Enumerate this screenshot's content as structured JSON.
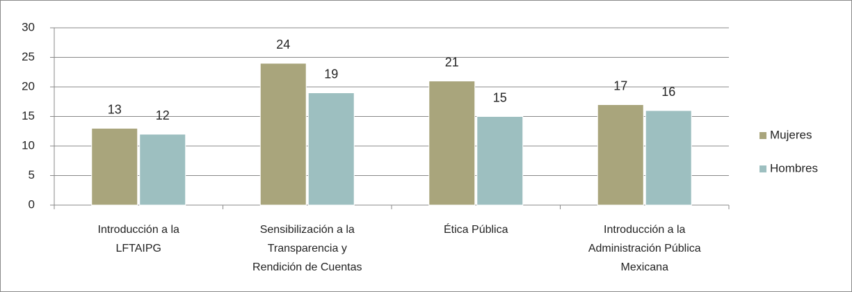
{
  "chart_data": {
    "type": "bar",
    "categories": [
      "Introducción a la LFTAIPG",
      "Sensibilización a la Transparencia y Rendición de Cuentas",
      "Ética Pública",
      "Introducción a la Administración Pública Mexicana"
    ],
    "series": [
      {
        "name": "Mujeres",
        "color": "#a9a57c",
        "values": [
          13,
          24,
          21,
          17
        ]
      },
      {
        "name": "Hombres",
        "color": "#9dbfc0",
        "values": [
          12,
          19,
          15,
          16
        ]
      }
    ],
    "ylim": [
      0,
      30
    ],
    "yticks": [
      0,
      5,
      10,
      15,
      20,
      25,
      30
    ],
    "grid": true,
    "legend": "right"
  }
}
